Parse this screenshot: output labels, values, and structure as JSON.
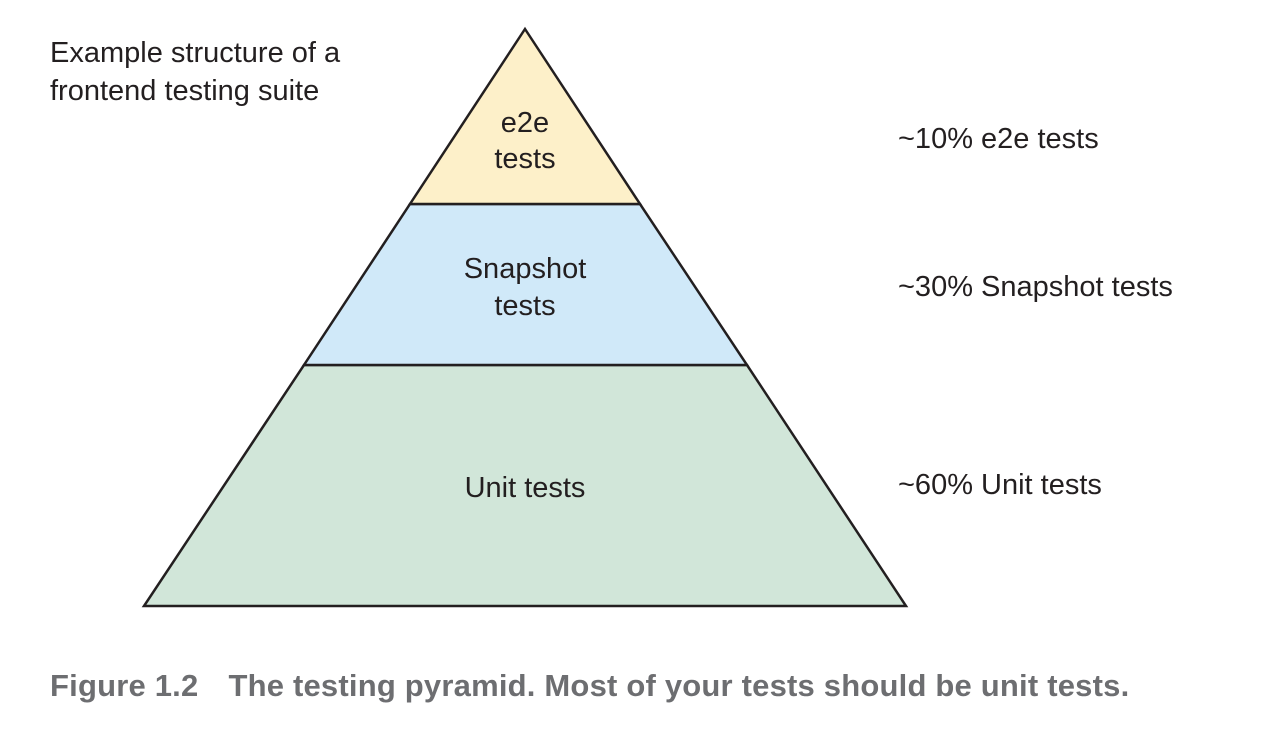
{
  "intro_note": {
    "line1": "Example structure of a",
    "line2": "frontend testing suite"
  },
  "pyramid": {
    "top": {
      "line1": "e2e",
      "line2": "tests",
      "color": "#fdf0c9"
    },
    "middle": {
      "line1": "Snapshot",
      "line2": "tests",
      "color": "#d0e9f9"
    },
    "bottom": {
      "line1": "Unit tests",
      "color": "#d1e6d9"
    },
    "outline_color": "#231f20"
  },
  "proportions": {
    "e2e": "~10% e2e tests",
    "snapshot": "~30% Snapshot tests",
    "unit": "~60% Unit tests"
  },
  "caption": {
    "number": "Figure 1.2",
    "text": "The testing pyramid. Most of your tests should be unit tests."
  }
}
